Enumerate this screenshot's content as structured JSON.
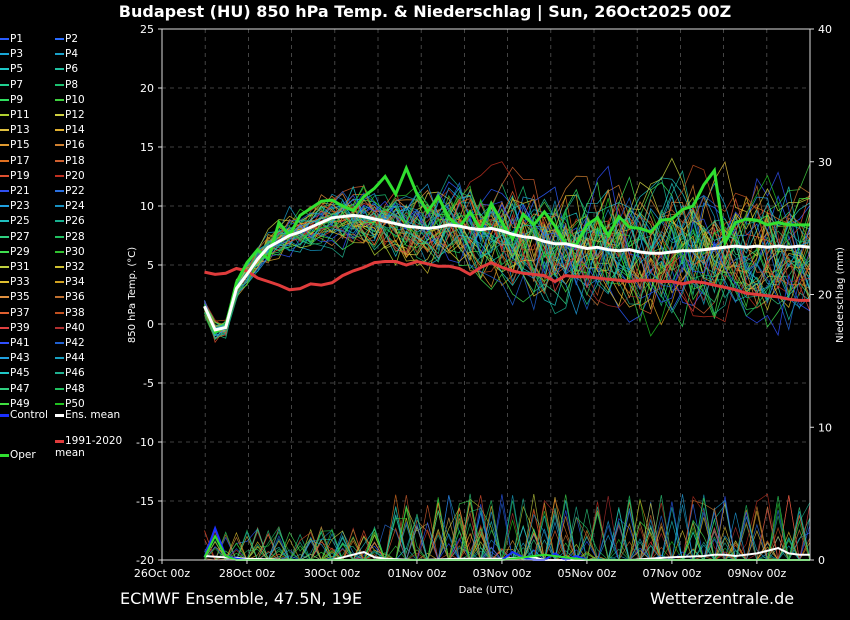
{
  "title": "Budapest  (HU)  850 hPa Temp. & Niederschlag | Sun, 26Oct2025 00Z",
  "footer": {
    "source": "ECMWF Ensemble, 47.5N, 19E",
    "site": "Wetterzentrale.de"
  },
  "legend": {
    "members": [
      "P1",
      "P2",
      "P3",
      "P4",
      "P5",
      "P6",
      "P7",
      "P8",
      "P9",
      "P10",
      "P11",
      "P12",
      "P13",
      "P14",
      "P15",
      "P16",
      "P17",
      "P18",
      "P19",
      "P20",
      "P21",
      "P22",
      "P23",
      "P24",
      "P25",
      "P26",
      "P27",
      "P28",
      "P29",
      "P30",
      "P31",
      "P32",
      "P33",
      "P34",
      "P35",
      "P36",
      "P37",
      "P38",
      "P39",
      "P40",
      "P41",
      "P42",
      "P43",
      "P44",
      "P45",
      "P46",
      "P47",
      "P48",
      "P49",
      "P50"
    ],
    "member_colors": [
      "#2a5cff",
      "#2a6cff",
      "#18a6d6",
      "#1aa0c8",
      "#1ec8c8",
      "#20c0a0",
      "#20d090",
      "#1cc070",
      "#30e060",
      "#40d040",
      "#b0d030",
      "#d0d040",
      "#e0c040",
      "#e0b030",
      "#e09a30",
      "#d08030",
      "#e07020",
      "#d06030",
      "#e05030",
      "#c03020",
      "#3050f0",
      "#2a70e0",
      "#20a0e0",
      "#1890c0",
      "#20c0c0",
      "#18b090",
      "#30d080",
      "#20c060",
      "#40e050",
      "#30c030",
      "#c0d040",
      "#d0c030",
      "#e0c030",
      "#d0a020",
      "#e09040",
      "#c07030",
      "#e06030",
      "#c05020",
      "#e04040",
      "#b03030",
      "#3050ff",
      "#2060d0",
      "#20a0e0",
      "#18a0c0",
      "#20c8c8",
      "#20b090",
      "#30d080",
      "#20c060",
      "#40e040",
      "#20c020"
    ],
    "extras": [
      {
        "label": "Control",
        "color": "#1a30ff"
      },
      {
        "label": "Ens. mean",
        "color": "#ffffff"
      },
      {
        "label": "Oper",
        "color": "#30e030"
      },
      {
        "label": "1991-2020 mean",
        "color": "#e03c3c"
      }
    ]
  },
  "chart_data": {
    "type": "line",
    "title": "Budapest  (HU)  850 hPa Temp. & Niederschlag | Sun, 26Oct2025 00Z",
    "xlabel": "Date (UTC)",
    "ylabel": "850 hPa Temp. (°C)",
    "y2label": "Niederschlag (mm)",
    "x_ticks": [
      "26Oct 00z",
      "28Oct 00z",
      "30Oct 00z",
      "01Nov 00z",
      "03Nov 00z",
      "05Nov 00z",
      "07Nov 00z",
      "09Nov 00z"
    ],
    "x_range_hours": [
      0,
      366
    ],
    "ylim": [
      -20,
      25
    ],
    "y_ticks": [
      25,
      20,
      15,
      10,
      5,
      0,
      -5,
      -10,
      -15,
      -20
    ],
    "y2lim": [
      0,
      40
    ],
    "y2_ticks": [
      40,
      30,
      20,
      10,
      0
    ],
    "grid": true,
    "series": [
      {
        "name": "Ens. mean",
        "color": "#ffffff",
        "x": [
          24,
          30,
          36,
          42,
          48,
          54,
          60,
          66,
          72,
          78,
          84,
          90,
          96,
          102,
          108,
          114,
          120,
          126,
          132,
          138,
          144,
          150,
          156,
          162,
          168,
          174,
          180,
          186,
          192,
          198,
          204,
          210,
          216,
          222,
          228,
          234,
          240,
          246,
          252,
          258,
          264,
          270,
          276,
          282,
          288,
          294,
          300,
          306,
          312,
          318,
          324,
          330,
          336,
          342,
          348,
          354,
          360,
          366
        ],
        "y": [
          1.5,
          -0.5,
          -0.3,
          3.0,
          4.2,
          5.5,
          6.5,
          7.0,
          7.5,
          7.8,
          8.2,
          8.6,
          9.0,
          9.1,
          9.2,
          9.1,
          8.9,
          8.7,
          8.5,
          8.3,
          8.2,
          8.1,
          8.2,
          8.4,
          8.3,
          8.1,
          8.0,
          8.1,
          7.9,
          7.6,
          7.4,
          7.3,
          7.0,
          6.8,
          6.8,
          6.6,
          6.4,
          6.5,
          6.3,
          6.2,
          6.3,
          6.1,
          6.0,
          6.0,
          6.1,
          6.2,
          6.2,
          6.3,
          6.4,
          6.5,
          6.6,
          6.5,
          6.6,
          6.5,
          6.6,
          6.5,
          6.6,
          6.5
        ]
      },
      {
        "name": "1991-2020 mean",
        "color": "#e03c3c",
        "x": [
          24,
          30,
          36,
          42,
          48,
          54,
          60,
          66,
          72,
          78,
          84,
          90,
          96,
          102,
          108,
          114,
          120,
          126,
          132,
          138,
          144,
          150,
          156,
          162,
          168,
          174,
          180,
          186,
          192,
          198,
          204,
          210,
          216,
          222,
          228,
          234,
          240,
          246,
          252,
          258,
          264,
          270,
          276,
          282,
          288,
          294,
          300,
          306,
          312,
          318,
          324,
          330,
          336,
          342,
          348,
          354,
          360,
          366
        ],
        "y": [
          4.4,
          4.2,
          4.3,
          4.7,
          4.5,
          3.9,
          3.6,
          3.3,
          2.9,
          3.0,
          3.4,
          3.3,
          3.5,
          4.1,
          4.5,
          4.8,
          5.2,
          5.3,
          5.3,
          5.0,
          5.3,
          5.1,
          4.9,
          4.9,
          4.7,
          4.2,
          4.8,
          5.2,
          4.8,
          4.5,
          4.3,
          4.2,
          4.1,
          3.6,
          4.1,
          4.0,
          4.0,
          3.9,
          3.8,
          3.7,
          3.6,
          3.7,
          3.7,
          3.6,
          3.6,
          3.4,
          3.6,
          3.5,
          3.3,
          3.1,
          2.9,
          2.6,
          2.5,
          2.4,
          2.3,
          2.1,
          2.0,
          2.0
        ]
      },
      {
        "name": "Oper",
        "color": "#30e030",
        "x": [
          24,
          30,
          36,
          42,
          48,
          54,
          60,
          66,
          72,
          78,
          84,
          90,
          96,
          102,
          108,
          114,
          120,
          126,
          132,
          138,
          144,
          150,
          156,
          162,
          168,
          174,
          180,
          186,
          192,
          198,
          204,
          210,
          216,
          222,
          228,
          234,
          240,
          246,
          252,
          258,
          264,
          270,
          276,
          282,
          288,
          294,
          300,
          306,
          312,
          318,
          324,
          330,
          336,
          342,
          348,
          354,
          360,
          366
        ],
        "y": [
          1.5,
          -0.7,
          -0.2,
          3.5,
          5.2,
          6.3,
          5.5,
          8.6,
          7.5,
          9.2,
          9.8,
          10.4,
          10.5,
          10.0,
          9.6,
          10.8,
          11.5,
          12.5,
          11.0,
          13.2,
          11.0,
          9.5,
          10.8,
          9.0,
          8.2,
          9.5,
          8.0,
          10.2,
          8.6,
          7.2,
          9.3,
          8.4,
          9.5,
          8.3,
          6.8,
          6.7,
          8.4,
          9.0,
          7.5,
          9.1,
          8.2,
          8.1,
          7.8,
          8.8,
          8.9,
          9.7,
          10.0,
          11.8,
          13.0,
          6.9,
          8.6,
          8.9,
          8.8,
          8.4,
          8.6,
          8.4,
          8.4,
          8.4
        ]
      }
    ],
    "precip_series": [
      {
        "name": "Ens. mean",
        "color": "#ffffff",
        "x": [
          24,
          48,
          72,
          96,
          114,
          120,
          126,
          144,
          168,
          192,
          210,
          216,
          240,
          264,
          288,
          306,
          312,
          318,
          324,
          336,
          348,
          354,
          360,
          366
        ],
        "y": [
          0.3,
          0.1,
          0.0,
          0.0,
          0.6,
          0.2,
          0.1,
          0.0,
          0.1,
          0.1,
          0.2,
          0.0,
          0.0,
          0.0,
          0.2,
          0.3,
          0.4,
          0.4,
          0.3,
          0.5,
          0.9,
          0.5,
          0.4,
          0.4
        ]
      },
      {
        "name": "Control",
        "color": "#1a30ff",
        "x": [
          24,
          30,
          36,
          42,
          48,
          192,
          198,
          204,
          210,
          216,
          222,
          228,
          234,
          240
        ],
        "y": [
          0.2,
          2.4,
          0.3,
          0.1,
          0.0,
          0.0,
          0.6,
          0.2,
          0.0,
          0.0,
          0.5,
          0.0,
          0.3,
          0.0
        ]
      },
      {
        "name": "Oper",
        "color": "#30e030",
        "x": [
          24,
          30,
          36,
          42,
          48,
          192,
          216,
          240,
          264,
          300,
          306,
          312,
          318,
          324,
          330,
          336,
          342,
          348,
          354,
          360,
          366
        ],
        "y": [
          0.2,
          1.8,
          0.3,
          0.0,
          0.0,
          0.0,
          0.4,
          0.0,
          0.0,
          0.0,
          0.0,
          0.0,
          0.0,
          0.0,
          0.0,
          0.0,
          0.0,
          0.0,
          0.0,
          0.0,
          0.0
        ]
      }
    ]
  }
}
